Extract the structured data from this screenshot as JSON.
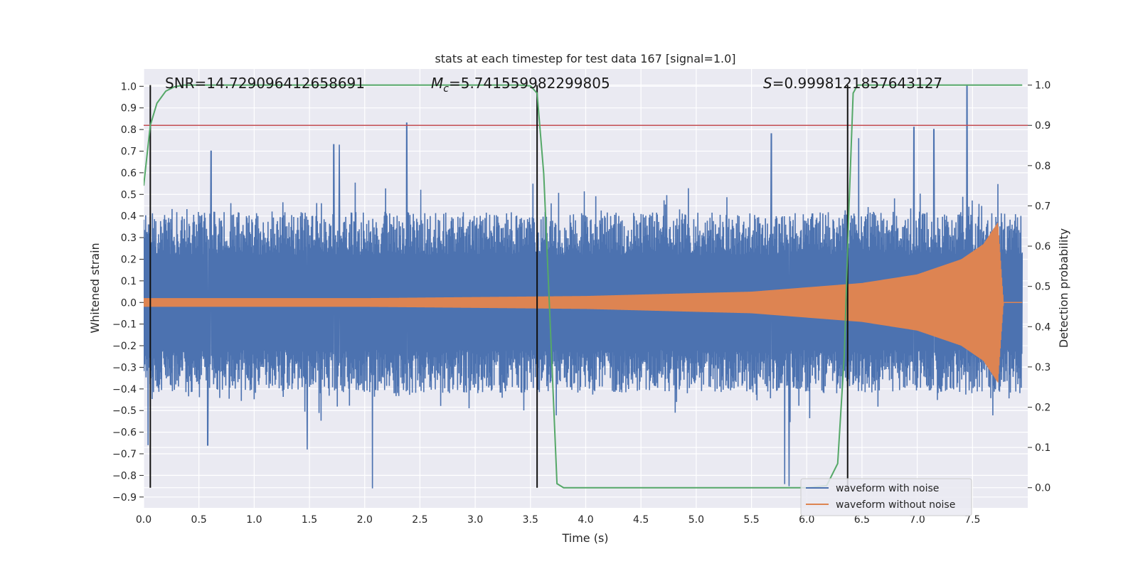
{
  "chart_data": {
    "type": "line",
    "title": "stats at each timestep for test data 167 [signal=1.0]",
    "xlabel": "Time (s)",
    "ylabel": "Whitened strain",
    "y2label": "Detection probability",
    "xlim": [
      0.0,
      8.0
    ],
    "ylim": [
      -0.95,
      1.08
    ],
    "y2lim": [
      -0.05,
      1.04
    ],
    "xticks": [
      "0.0",
      "0.5",
      "1.0",
      "1.5",
      "2.0",
      "2.5",
      "3.0",
      "3.5",
      "4.0",
      "4.5",
      "5.0",
      "5.5",
      "6.0",
      "6.5",
      "7.0",
      "7.5"
    ],
    "yticks": [
      "1.0",
      "0.9",
      "0.8",
      "0.7",
      "0.6",
      "0.5",
      "0.4",
      "0.3",
      "0.2",
      "0.1",
      "0.0",
      "-0.1",
      "-0.2",
      "-0.3",
      "-0.4",
      "-0.5",
      "-0.6",
      "-0.7",
      "-0.8",
      "-0.9"
    ],
    "y2ticks": [
      "1.0",
      "0.9",
      "0.8",
      "0.7",
      "0.6",
      "0.5",
      "0.4",
      "0.3",
      "0.2",
      "0.1",
      "0.0"
    ],
    "annotations": {
      "snr": "SNR=14.729096412658691",
      "mc_symbol": "M",
      "mc_sub": "c",
      "mc_value": "=5.741559982299805",
      "s_symbol": "S",
      "s_value": "=0.9998121857643127"
    },
    "threshold": {
      "y2": 0.9,
      "color": "#c44e52"
    },
    "vlines_x": [
      0.06,
      3.56,
      6.37
    ],
    "vline_range_y2": [
      0.0,
      1.0
    ],
    "series": [
      {
        "name": "waveform with noise",
        "color": "#4c72b0",
        "description": "whitened strain with noise; envelope spans about -0.55 to 0.55 with peaks near 1.0",
        "peaks": [
          {
            "x": 2.38,
            "y": 0.83
          },
          {
            "x": 7.45,
            "y": 1.0
          },
          {
            "x": 1.72,
            "y": 0.73
          },
          {
            "x": 1.77,
            "y": 0.73
          },
          {
            "x": 6.97,
            "y": 0.81
          },
          {
            "x": 7.15,
            "y": 0.8
          },
          {
            "x": 5.68,
            "y": 0.78
          },
          {
            "x": 6.47,
            "y": 0.76
          },
          {
            "x": 0.61,
            "y": 0.7
          },
          {
            "x": 2.07,
            "y": -0.86
          },
          {
            "x": 5.8,
            "y": -0.84
          },
          {
            "x": 5.84,
            "y": -0.85
          },
          {
            "x": 0.58,
            "y": -0.66
          },
          {
            "x": 1.48,
            "y": -0.68
          },
          {
            "x": 0.04,
            "y": -0.66
          }
        ]
      },
      {
        "name": "waveform without noise",
        "color": "#dd8452",
        "description": "chirp signal, amplitude grows from 0.02 at t=0 to about 0.37 near t=7.73 then rings down to 0",
        "amplitude_envelope": [
          {
            "t": 0.0,
            "amp": 0.02
          },
          {
            "t": 2.0,
            "amp": 0.02
          },
          {
            "t": 4.0,
            "amp": 0.03
          },
          {
            "t": 5.5,
            "amp": 0.05
          },
          {
            "t": 6.5,
            "amp": 0.09
          },
          {
            "t": 7.0,
            "amp": 0.13
          },
          {
            "t": 7.4,
            "amp": 0.2
          },
          {
            "t": 7.6,
            "amp": 0.27
          },
          {
            "t": 7.73,
            "amp": 0.37
          },
          {
            "t": 7.78,
            "amp": 0.0
          },
          {
            "t": 8.0,
            "amp": 0.0
          }
        ]
      },
      {
        "name": "detection probability",
        "color": "#55a868",
        "axis": "y2",
        "x": [
          0.0,
          0.06,
          0.12,
          0.2,
          0.28,
          0.36,
          0.45,
          1.0,
          2.0,
          3.0,
          3.4,
          3.5,
          3.56,
          3.62,
          3.68,
          3.74,
          3.8,
          4.0,
          5.0,
          6.0,
          6.18,
          6.28,
          6.34,
          6.38,
          6.42,
          6.46,
          7.0,
          7.95
        ],
        "y": [
          0.75,
          0.9,
          0.955,
          0.985,
          0.996,
          1.0,
          1.0,
          1.0,
          1.0,
          1.0,
          1.0,
          0.998,
          0.98,
          0.78,
          0.4,
          0.01,
          0.0,
          0.0,
          0.0,
          0.0,
          0.005,
          0.06,
          0.33,
          0.68,
          0.98,
          1.0,
          1.0,
          1.0
        ]
      }
    ],
    "legend": {
      "position": "lower-right",
      "entries": [
        "waveform with noise",
        "waveform without noise"
      ]
    }
  }
}
